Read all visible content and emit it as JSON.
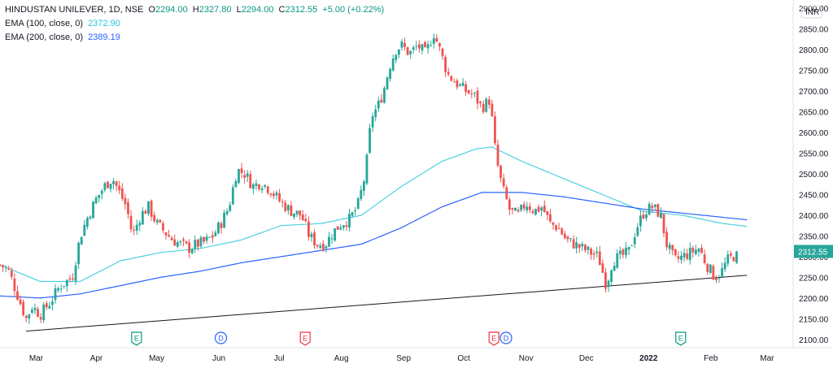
{
  "header": {
    "symbol": "HINDUSTAN UNILEVER, 1D, NSE",
    "open_label": "O",
    "open": "2294.00",
    "high_label": "H",
    "high": "2327.80",
    "low_label": "L",
    "low": "2294.00",
    "close_label": "C",
    "close": "2312.55",
    "change": "+5.00 (+0.22%)",
    "ema100_label": "EMA (100, close, 0)",
    "ema100_value": "2372.90",
    "ema200_label": "EMA (200, close, 0)",
    "ema200_value": "2389.19"
  },
  "colors": {
    "up": "#26a69a",
    "down": "#ef5350",
    "ema100": "#4dd0e1",
    "ema200": "#2962ff",
    "trendline": "#131722",
    "axis_text": "#131722",
    "event_earnings": "#089981",
    "event_dividend": "#2962ff",
    "event_earnings_red": "#f23645"
  },
  "chart_data": {
    "type": "candlestick",
    "currency_label": "INR",
    "last_price_label": "2312.55",
    "ylim": [
      2080,
      2920
    ],
    "y_ticks": [
      2100,
      2150,
      2200,
      2250,
      2300,
      2350,
      2400,
      2450,
      2500,
      2550,
      2600,
      2650,
      2700,
      2750,
      2800,
      2850,
      2900
    ],
    "x_tick_labels": [
      "Mar",
      "Apr",
      "May",
      "Jun",
      "Jul",
      "Aug",
      "Sep",
      "Oct",
      "Nov",
      "Dec",
      "2022",
      "Feb",
      "Mar"
    ],
    "x_tick_days": [
      18,
      48,
      78,
      109,
      139,
      170,
      201,
      231,
      262,
      292,
      323,
      354,
      382
    ],
    "x_domain_days": [
      0,
      395
    ],
    "close_waypoints": [
      [
        0,
        2280
      ],
      [
        4,
        2270
      ],
      [
        10,
        2190
      ],
      [
        13,
        2150
      ],
      [
        16,
        2180
      ],
      [
        20,
        2160
      ],
      [
        25,
        2190
      ],
      [
        30,
        2230
      ],
      [
        36,
        2250
      ],
      [
        40,
        2350
      ],
      [
        44,
        2400
      ],
      [
        48,
        2440
      ],
      [
        52,
        2470
      ],
      [
        56,
        2490
      ],
      [
        60,
        2450
      ],
      [
        63,
        2420
      ],
      [
        66,
        2350
      ],
      [
        70,
        2400
      ],
      [
        74,
        2420
      ],
      [
        78,
        2380
      ],
      [
        82,
        2360
      ],
      [
        86,
        2340
      ],
      [
        90,
        2330
      ],
      [
        94,
        2320
      ],
      [
        98,
        2330
      ],
      [
        102,
        2335
      ],
      [
        106,
        2350
      ],
      [
        110,
        2380
      ],
      [
        114,
        2420
      ],
      [
        118,
        2510
      ],
      [
        122,
        2500
      ],
      [
        126,
        2470
      ],
      [
        130,
        2480
      ],
      [
        135,
        2460
      ],
      [
        140,
        2430
      ],
      [
        145,
        2410
      ],
      [
        150,
        2400
      ],
      [
        154,
        2350
      ],
      [
        158,
        2330
      ],
      [
        162,
        2330
      ],
      [
        166,
        2360
      ],
      [
        170,
        2380
      ],
      [
        174,
        2390
      ],
      [
        178,
        2420
      ],
      [
        182,
        2500
      ],
      [
        185,
        2640
      ],
      [
        188,
        2660
      ],
      [
        191,
        2700
      ],
      [
        194,
        2760
      ],
      [
        197,
        2800
      ],
      [
        200,
        2810
      ],
      [
        204,
        2790
      ],
      [
        208,
        2810
      ],
      [
        212,
        2790
      ],
      [
        216,
        2840
      ],
      [
        219,
        2800
      ],
      [
        223,
        2740
      ],
      [
        227,
        2720
      ],
      [
        232,
        2700
      ],
      [
        236,
        2690
      ],
      [
        240,
        2660
      ],
      [
        244,
        2680
      ],
      [
        247,
        2540
      ],
      [
        250,
        2470
      ],
      [
        254,
        2410
      ],
      [
        258,
        2400
      ],
      [
        262,
        2430
      ],
      [
        266,
        2410
      ],
      [
        270,
        2420
      ],
      [
        274,
        2380
      ],
      [
        278,
        2370
      ],
      [
        282,
        2340
      ],
      [
        286,
        2330
      ],
      [
        290,
        2320
      ],
      [
        294,
        2310
      ],
      [
        298,
        2300
      ],
      [
        302,
        2230
      ],
      [
        305,
        2290
      ],
      [
        309,
        2300
      ],
      [
        313,
        2310
      ],
      [
        317,
        2370
      ],
      [
        321,
        2410
      ],
      [
        325,
        2420
      ],
      [
        329,
        2400
      ],
      [
        332,
        2330
      ],
      [
        336,
        2290
      ],
      [
        340,
        2300
      ],
      [
        344,
        2310
      ],
      [
        348,
        2320
      ],
      [
        352,
        2280
      ],
      [
        356,
        2250
      ],
      [
        359,
        2260
      ],
      [
        362,
        2290
      ],
      [
        365,
        2300
      ],
      [
        368,
        2312.55
      ]
    ],
    "ema100_waypoints": [
      [
        0,
        2280
      ],
      [
        20,
        2240
      ],
      [
        40,
        2240
      ],
      [
        60,
        2290
      ],
      [
        80,
        2310
      ],
      [
        100,
        2320
      ],
      [
        120,
        2340
      ],
      [
        140,
        2375
      ],
      [
        160,
        2380
      ],
      [
        180,
        2400
      ],
      [
        200,
        2470
      ],
      [
        220,
        2530
      ],
      [
        237,
        2560
      ],
      [
        245,
        2565
      ],
      [
        260,
        2530
      ],
      [
        280,
        2490
      ],
      [
        300,
        2450
      ],
      [
        320,
        2410
      ],
      [
        340,
        2400
      ],
      [
        360,
        2380
      ],
      [
        372,
        2373
      ]
    ],
    "ema200_waypoints": [
      [
        0,
        2205
      ],
      [
        20,
        2200
      ],
      [
        40,
        2210
      ],
      [
        60,
        2230
      ],
      [
        80,
        2250
      ],
      [
        100,
        2265
      ],
      [
        120,
        2285
      ],
      [
        140,
        2300
      ],
      [
        160,
        2315
      ],
      [
        180,
        2330
      ],
      [
        200,
        2370
      ],
      [
        220,
        2420
      ],
      [
        240,
        2455
      ],
      [
        260,
        2455
      ],
      [
        280,
        2445
      ],
      [
        300,
        2430
      ],
      [
        320,
        2415
      ],
      [
        340,
        2405
      ],
      [
        360,
        2395
      ],
      [
        372,
        2389
      ]
    ],
    "trendline": [
      [
        13,
        2120
      ],
      [
        372,
        2255
      ]
    ],
    "events": [
      {
        "day": 68,
        "letter": "E",
        "type": "earnings"
      },
      {
        "day": 110,
        "letter": "D",
        "type": "dividend"
      },
      {
        "day": 152,
        "letter": "E",
        "type": "earnings_red"
      },
      {
        "day": 246,
        "letter": "E",
        "type": "earnings_red"
      },
      {
        "day": 252,
        "letter": "D",
        "type": "dividend"
      },
      {
        "day": 339,
        "letter": "E",
        "type": "earnings"
      }
    ]
  }
}
